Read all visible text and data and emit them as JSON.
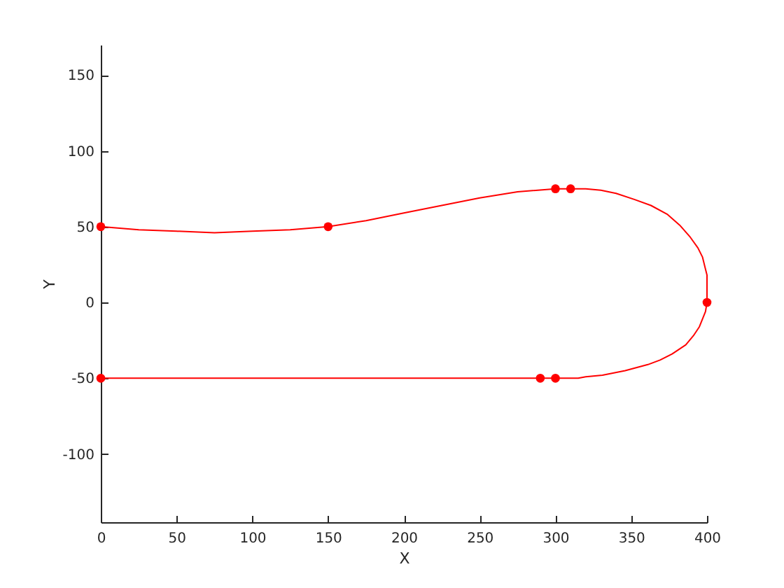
{
  "chart_data": {
    "type": "line",
    "xlabel": "X",
    "ylabel": "Y",
    "xlim": [
      0,
      400
    ],
    "xticks": [
      0,
      50,
      100,
      150,
      200,
      250,
      300,
      350,
      400
    ],
    "ylim": [
      -145,
      170
    ],
    "yticks": [
      -100,
      -50,
      0,
      50,
      100,
      150
    ],
    "series": [
      {
        "color": "#ff0000",
        "marker": "none",
        "x": [
          0,
          25,
          50,
          75,
          100,
          125,
          150,
          175,
          200,
          225,
          250,
          275,
          300,
          310,
          320,
          330,
          340,
          352,
          363,
          374,
          382,
          389,
          394,
          397,
          399,
          400,
          400,
          399,
          395,
          391,
          386,
          377,
          369,
          361,
          346,
          331,
          320,
          315,
          300,
          290,
          0
        ],
        "values": [
          50,
          48,
          47,
          46,
          47,
          48,
          50,
          54,
          59,
          64,
          69,
          73,
          75,
          75,
          75,
          74,
          72,
          68,
          64,
          58,
          51,
          43,
          36,
          30,
          22,
          18,
          0,
          -6,
          -16,
          -22,
          -28,
          -34,
          -38,
          -41,
          -45,
          -48,
          -49,
          -50,
          -50,
          -50,
          -50
        ]
      },
      {
        "type": "scatter",
        "color": "#ff0000",
        "marker": "circle",
        "x": [
          0,
          150,
          300,
          310,
          400,
          300,
          290,
          0
        ],
        "values": [
          50,
          50,
          75,
          75,
          0,
          -50,
          -50,
          -50
        ]
      }
    ]
  }
}
